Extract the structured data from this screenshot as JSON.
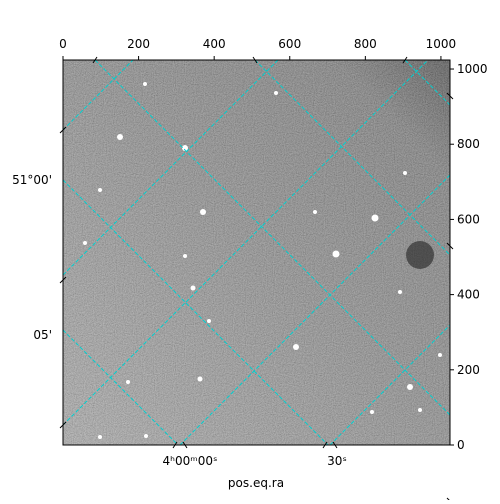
{
  "chart_data": {
    "type": "image",
    "xlim": [
      0,
      1024
    ],
    "xticks": [
      0,
      200,
      400,
      600,
      800,
      1000
    ],
    "ylim": [
      0,
      1024
    ],
    "yticks": [
      0,
      200,
      400,
      600,
      800,
      1000
    ],
    "world_y_labels": [
      "51°00'",
      "05'"
    ],
    "world_x_labels": [
      "4ʰ00ᵐ00ˢ",
      "30ˢ"
    ],
    "xlabel": "pos.eq.ra",
    "grid_color": "#00d0d0"
  }
}
